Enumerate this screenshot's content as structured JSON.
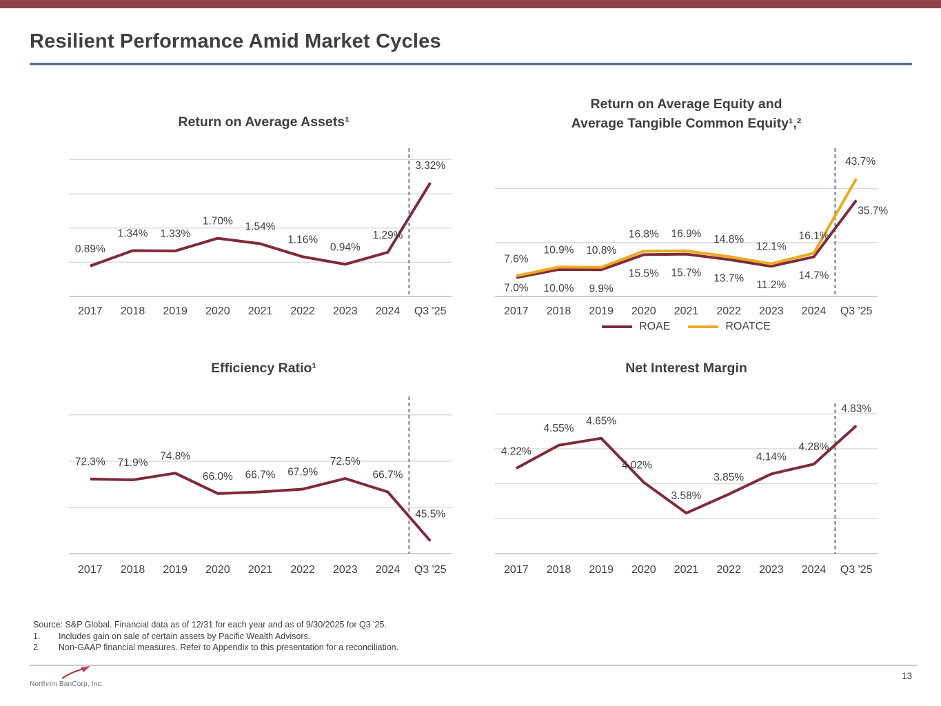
{
  "slide": {
    "title": "Resilient Performance Amid Market Cycles",
    "page_number": "13"
  },
  "colors": {
    "top_bar": "#94404A",
    "title_underline": "#527089",
    "maroon_line": "#7E2B3A",
    "gold_line": "#EDAA1E",
    "gridline": "#D9D9D9",
    "axis_line": "#BEBEBE",
    "divider_dash": "#5A5A5A",
    "text": "#404040"
  },
  "footer": {
    "source": "Source: S&P Global. Financial data as of 12/31 for each year and as of 9/30/2025 for Q3 '25.",
    "footnotes": [
      {
        "num": "1.",
        "text": "Includes gain on sale of certain assets by Pacific Wealth Advisors."
      },
      {
        "num": "2.",
        "text": "Non-GAAP financial measures. Refer to Appendix to this presentation for a reconciliation."
      }
    ],
    "logo_text": "Northrim BanCorp, Inc."
  },
  "chart_data": [
    {
      "key": "return_on_average_assets",
      "type": "line",
      "title_lines": [
        "Return on Average Assets¹"
      ],
      "categories": [
        "2017",
        "2018",
        "2019",
        "2020",
        "2021",
        "2022",
        "2023",
        "2024",
        "Q3 '25"
      ],
      "series": [
        {
          "name": "Return on Average Assets",
          "color": "#7E2B3A",
          "values": [
            0.89,
            1.34,
            1.33,
            1.7,
            1.54,
            1.16,
            0.94,
            1.29,
            3.32
          ],
          "labels": [
            "0.89%",
            "1.34%",
            "1.33%",
            "1.70%",
            "1.54%",
            "1.16%",
            "0.94%",
            "1.29%",
            "3.32%"
          ],
          "label_position": "above",
          "label_overrides": {}
        }
      ],
      "ylim": [
        0,
        4.33
      ],
      "gridline_values": [
        1,
        2,
        3,
        4
      ],
      "grid": true,
      "divider_index": 8,
      "legend": null
    },
    {
      "key": "roae_and_roatce",
      "type": "line",
      "title_lines": [
        "Return on Average Equity and",
        "Average Tangible Common Equity¹,²"
      ],
      "categories": [
        "2017",
        "2018",
        "2019",
        "2020",
        "2021",
        "2022",
        "2023",
        "2024",
        "Q3 '25"
      ],
      "series": [
        {
          "name": "ROAE",
          "color": "#7E2B3A",
          "values": [
            7.0,
            10.0,
            9.9,
            15.5,
            15.7,
            13.7,
            11.2,
            14.7,
            35.7
          ],
          "labels": [
            "7.0%",
            "10.0%",
            "9.9%",
            "15.5%",
            "15.7%",
            "13.7%",
            "11.2%",
            "14.7%",
            "35.7%"
          ],
          "label_position": "below",
          "label_overrides": {
            "0": {
              "dy": -12
            },
            "8": {
              "dx": 24,
              "dy": -12
            }
          }
        },
        {
          "name": "ROATCE",
          "color": "#EDAA1E",
          "values": [
            7.6,
            10.9,
            10.8,
            16.8,
            16.9,
            14.8,
            12.1,
            16.1,
            43.7
          ],
          "labels": [
            "7.6%",
            "10.9%",
            "10.8%",
            "16.8%",
            "16.9%",
            "14.8%",
            "12.1%",
            "16.1%",
            "43.7%"
          ],
          "label_position": "above",
          "label_overrides": {
            "8": {
              "dx": 6
            }
          }
        }
      ],
      "ylim": [
        0,
        55
      ],
      "gridline_values": [
        20,
        40
      ],
      "grid": true,
      "divider_index": 8,
      "legend": {
        "position": "bottom",
        "items": [
          "ROAE",
          "ROATCE"
        ]
      }
    },
    {
      "key": "efficiency_ratio",
      "type": "line",
      "title_lines": [
        "Efficiency Ratio¹"
      ],
      "categories": [
        "2017",
        "2018",
        "2019",
        "2020",
        "2021",
        "2022",
        "2023",
        "2024",
        "Q3 '25"
      ],
      "series": [
        {
          "name": "Efficiency Ratio",
          "color": "#7E2B3A",
          "values": [
            72.3,
            71.9,
            74.8,
            66.0,
            66.7,
            67.9,
            72.5,
            66.7,
            45.5
          ],
          "labels": [
            "72.3%",
            "71.9%",
            "74.8%",
            "66.0%",
            "66.7%",
            "67.9%",
            "72.5%",
            "66.7%",
            "45.5%"
          ],
          "label_position": "above",
          "label_overrides": {
            "8": {
              "dy": -14
            }
          }
        }
      ],
      "ylim": [
        40,
        108
      ],
      "gridline_values": [
        60,
        80,
        100
      ],
      "grid": true,
      "divider_index": 8,
      "legend": null
    },
    {
      "key": "net_interest_margin",
      "type": "line",
      "title_lines": [
        "Net Interest Margin"
      ],
      "categories": [
        "2017",
        "2018",
        "2019",
        "2020",
        "2021",
        "2022",
        "2023",
        "2024",
        "Q3 '25"
      ],
      "series": [
        {
          "name": "Net Interest Margin",
          "color": "#7E2B3A",
          "values": [
            4.22,
            4.55,
            4.65,
            4.02,
            3.58,
            3.85,
            4.14,
            4.28,
            4.83
          ],
          "labels": [
            "4.22%",
            "4.55%",
            "4.65%",
            "4.02%",
            "3.58%",
            "3.85%",
            "4.14%",
            "4.28%",
            "4.83%"
          ],
          "label_position": "above",
          "label_overrides": {
            "3": {
              "dx": -10
            }
          }
        }
      ],
      "ylim": [
        3.0,
        5.15
      ],
      "gridline_values": [
        3.5,
        4.0,
        4.5,
        5.0
      ],
      "grid": true,
      "divider_index": 8,
      "legend": null
    }
  ]
}
